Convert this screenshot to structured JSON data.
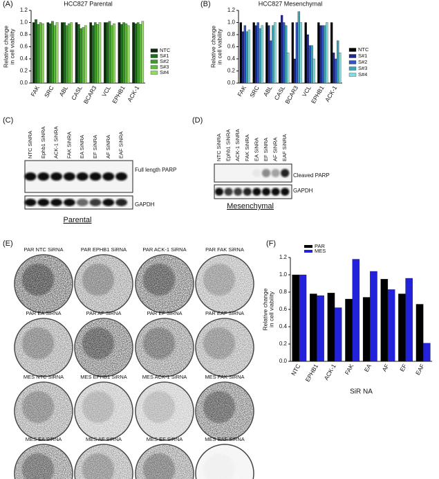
{
  "chart_data": [
    {
      "type": "bar",
      "panel_label": "(A)",
      "title": "HCC827 Parental",
      "ylabel": [
        "Relative change",
        "in cell viability"
      ],
      "categories": [
        "FAK",
        "SRC",
        "ABL",
        "CASL",
        "BCAR3",
        "VCL",
        "EPHB1",
        "ACK-1"
      ],
      "series": [
        {
          "name": "NTC",
          "color": "#0d2d0d",
          "values": [
            1.0,
            1.0,
            1.0,
            1.0,
            1.0,
            1.0,
            1.0,
            1.0
          ]
        },
        {
          "name": "S#1",
          "color": "#1f6b1f",
          "values": [
            1.05,
            0.98,
            1.0,
            0.97,
            0.95,
            1.0,
            0.97,
            0.98
          ]
        },
        {
          "name": "S#2",
          "color": "#3c9a2a",
          "values": [
            0.97,
            1.02,
            0.95,
            0.9,
            1.0,
            1.02,
            1.0,
            1.0
          ]
        },
        {
          "name": "S#3",
          "color": "#5cbf3a",
          "values": [
            1.0,
            0.95,
            0.98,
            0.92,
            0.97,
            0.95,
            0.98,
            0.97
          ]
        },
        {
          "name": "S#4",
          "color": "#93d860",
          "values": [
            0.98,
            1.0,
            1.0,
            0.95,
            1.0,
            0.98,
            0.95,
            1.02
          ]
        }
      ],
      "ylim": [
        0,
        1.2
      ],
      "yticks": [
        {
          "value": 0,
          "label": "0.0"
        },
        0.2,
        0.4,
        0.6,
        0.8,
        {
          "value": 1,
          "label": "1.0"
        },
        1.2
      ],
      "legend": "right"
    },
    {
      "type": "bar",
      "panel_label": "(B)",
      "title": "HCC827 Mesenchymal",
      "ylabel": [
        "Relative change",
        "in cell viability"
      ],
      "categories": [
        "FAK",
        "SRC",
        "ABL",
        "CASL",
        "BCAR3",
        "VCL",
        "EPHB1",
        "ACK-1"
      ],
      "series": [
        {
          "name": "NTC",
          "color": "#000000",
          "values": [
            1.0,
            1.0,
            1.0,
            1.0,
            1.0,
            1.0,
            1.0,
            1.0
          ]
        },
        {
          "name": "S#1",
          "color": "#1f2a8a",
          "values": [
            0.85,
            0.95,
            0.95,
            1.12,
            0.4,
            0.8,
            0.95,
            0.5
          ]
        },
        {
          "name": "S#2",
          "color": "#2f55c8",
          "values": [
            0.95,
            1.0,
            0.7,
            1.0,
            1.0,
            0.62,
            0.95,
            0.4
          ]
        },
        {
          "name": "S#3",
          "color": "#3aa6b8",
          "values": [
            0.85,
            0.9,
            0.95,
            0.95,
            1.18,
            0.62,
            0.95,
            0.7
          ]
        },
        {
          "name": "S#4",
          "color": "#86dcdc",
          "values": [
            0.88,
            0.95,
            1.0,
            0.5,
            1.0,
            0.4,
            1.0,
            0.5
          ]
        }
      ],
      "ylim": [
        0,
        1.2
      ],
      "yticks": [
        {
          "value": 0,
          "label": "0.0"
        },
        0.2,
        0.4,
        0.6,
        0.8,
        {
          "value": 1,
          "label": "1.0"
        },
        1.2
      ],
      "legend": "right"
    },
    {
      "type": "bar",
      "panel_label": "(F)",
      "ylabel": [
        "Relative change",
        "in cell viability"
      ],
      "xlabel": "SiR NA",
      "categories": [
        "NTC",
        "EPHB1",
        "ACK-1",
        "FAK",
        "EA",
        "AF",
        "EF",
        "EAF"
      ],
      "series": [
        {
          "name": "PAR",
          "color": "#000000",
          "values": [
            1.0,
            0.78,
            0.79,
            0.72,
            0.74,
            0.95,
            0.78,
            0.66
          ]
        },
        {
          "name": "MES",
          "color": "#2222dd",
          "values": [
            1.0,
            0.76,
            0.62,
            1.18,
            1.04,
            0.83,
            0.96,
            0.21
          ]
        }
      ],
      "ylim": [
        0,
        1.2
      ],
      "yticks": [
        {
          "value": 0,
          "label": "0.0"
        },
        0.2,
        0.4,
        0.6,
        0.8,
        {
          "value": 1,
          "label": "1.0"
        },
        1.2
      ],
      "legend": "top"
    }
  ],
  "blots": [
    {
      "panel_label": "(C)",
      "lanes": [
        "NTC SiNRA",
        "Ephb1 SiNRA",
        "ACK-1 SiNRA",
        "FAK SiNRA",
        "EA SiNRA",
        "EF SiNRA",
        "AF SiNRA",
        "EAF SiNRA"
      ],
      "bands": [
        "Full length PARP",
        "GAPDH"
      ],
      "caption": "Parental"
    },
    {
      "panel_label": "(D)",
      "lanes": [
        "NTC SiNRA",
        "Ephb1 SiNRA",
        "ACK-1 SiNRA",
        "FAK SiNRA",
        "EA SiNRA",
        "EF SiNRA",
        "AF SINRA",
        "EAF SiNRA"
      ],
      "bands": [
        "Cleaved PARP",
        "GAPDH"
      ],
      "caption": "Mesenchymal"
    }
  ],
  "plates": {
    "panel_label": "(E)",
    "labels": [
      "PAR NTC SiRNA",
      "PAR EPHB1 SiRNA",
      "PAR ACK-1 SiRNA",
      "PAR FAK SiRNA",
      "PAR EA SiRNA",
      "PAR AF SiRNA",
      "PAR EF SiRNA",
      "PAR EAF SiRNA",
      "MES NTC SiRNA",
      "MES EPHB1 SiRNA",
      "MES ACK-1 SiRNA",
      "MES FAK SiRNA",
      "MES EA SiRNA",
      "MES AF SiRNA",
      "MES EF SiRNA",
      "MES EAF SiRNA"
    ]
  }
}
